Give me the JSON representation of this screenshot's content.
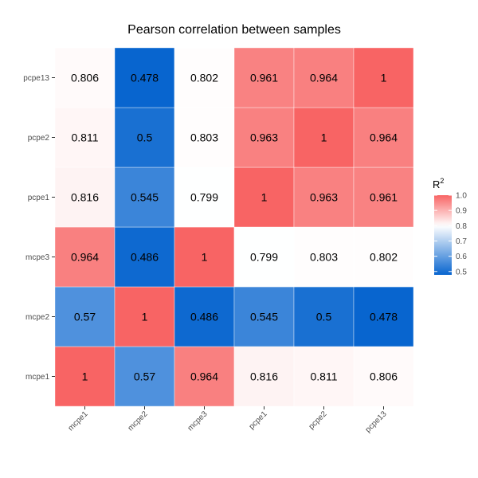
{
  "chart_data": {
    "type": "heatmap",
    "title": "Pearson correlation between samples",
    "x_categories": [
      "mcpe1",
      "mcpe2",
      "mcpe3",
      "pcpe1",
      "pcpe2",
      "pcpe13"
    ],
    "y_categories": [
      "mcpe1",
      "mcpe2",
      "mcpe3",
      "pcpe1",
      "pcpe2",
      "pcpe13"
    ],
    "matrix": [
      [
        1,
        0.57,
        0.964,
        0.816,
        0.811,
        0.806
      ],
      [
        0.57,
        1,
        0.486,
        0.545,
        0.5,
        0.478
      ],
      [
        0.964,
        0.486,
        1,
        0.799,
        0.803,
        0.802
      ],
      [
        0.816,
        0.545,
        0.799,
        1,
        0.963,
        0.961
      ],
      [
        0.811,
        0.5,
        0.803,
        0.963,
        1,
        0.964
      ],
      [
        0.806,
        0.478,
        0.802,
        0.961,
        0.964,
        1
      ]
    ],
    "legend": {
      "title": "R",
      "title_superscript": "2",
      "ticks": [
        "0.5",
        "0.6",
        "0.7",
        "0.8",
        "0.9",
        "1.0"
      ],
      "range": [
        0.478,
        1
      ],
      "midpoint": 0.8,
      "colors": {
        "low": "#0865cf",
        "mid": "#ffffff",
        "high": "#f86464"
      }
    },
    "panel_background": "#ebebeb",
    "grid_color": "#ffffff"
  }
}
